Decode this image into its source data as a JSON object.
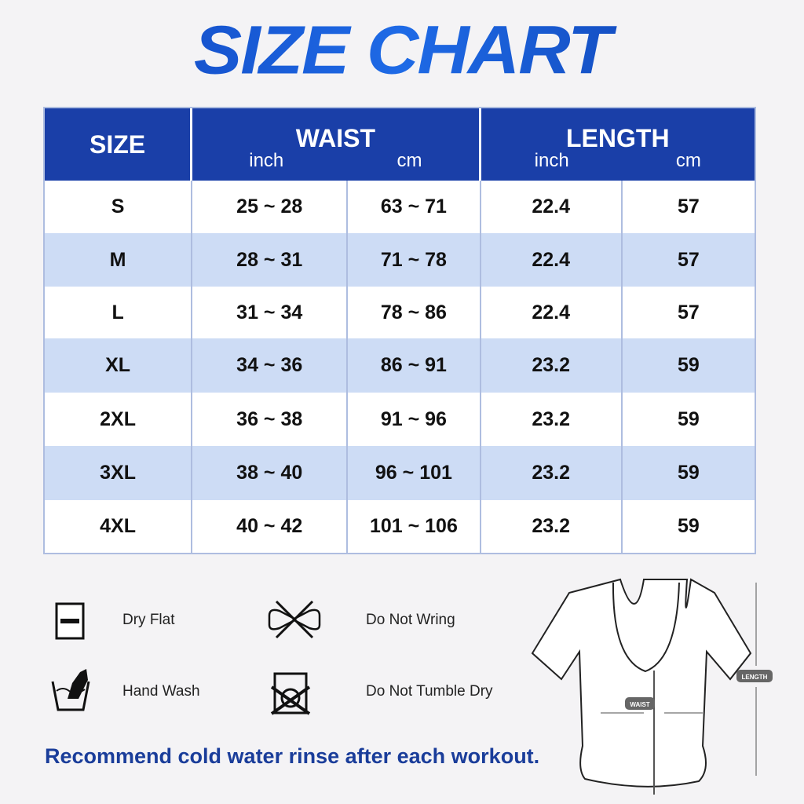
{
  "title": "SIZE CHART",
  "header": {
    "size": "SIZE",
    "waist": "WAIST",
    "length": "LENGTH",
    "inch": "inch",
    "cm": "cm"
  },
  "rows": [
    {
      "size": "S",
      "waist_inch": "25 ~ 28",
      "waist_cm": "63 ~ 71",
      "length_inch": "22.4",
      "length_cm": "57"
    },
    {
      "size": "M",
      "waist_inch": "28 ~ 31",
      "waist_cm": "71 ~ 78",
      "length_inch": "22.4",
      "length_cm": "57"
    },
    {
      "size": "L",
      "waist_inch": "31 ~ 34",
      "waist_cm": "78 ~ 86",
      "length_inch": "22.4",
      "length_cm": "57"
    },
    {
      "size": "XL",
      "waist_inch": "34 ~ 36",
      "waist_cm": "86 ~ 91",
      "length_inch": "23.2",
      "length_cm": "59"
    },
    {
      "size": "2XL",
      "waist_inch": "36 ~ 38",
      "waist_cm": "91 ~ 96",
      "length_inch": "23.2",
      "length_cm": "59"
    },
    {
      "size": "3XL",
      "waist_inch": "38 ~ 40",
      "waist_cm": "96 ~ 101",
      "length_inch": "23.2",
      "length_cm": "59"
    },
    {
      "size": "4XL",
      "waist_inch": "40 ~ 42",
      "waist_cm": "101 ~ 106",
      "length_inch": "23.2",
      "length_cm": "59"
    }
  ],
  "care": {
    "dry_flat": "Dry Flat",
    "no_wring": "Do Not Wring",
    "hand_wash": "Hand Wash",
    "no_tumble": "Do Not Tumble Dry"
  },
  "note": "Recommend cold water rinse after each workout.",
  "diagram": {
    "waist": "WAIST",
    "length": "LENGTH"
  },
  "colors": {
    "header": "#1a3fa8",
    "alt_row": "#cddcf5",
    "note": "#1a3d9a"
  }
}
